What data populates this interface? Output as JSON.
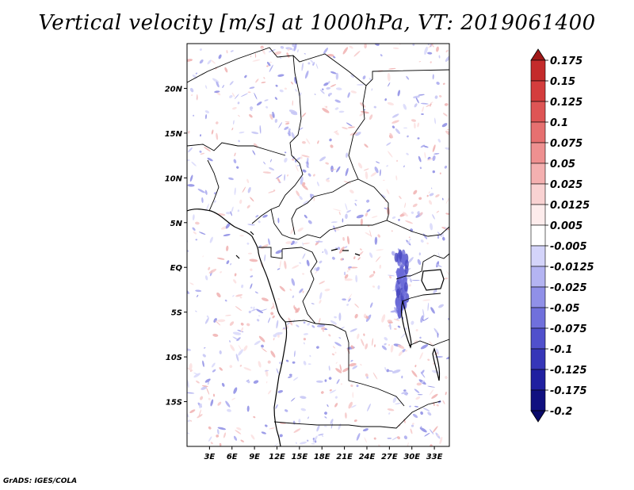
{
  "title": "Vertical velocity [m/s] at 1000hPa, VT: 2019061400",
  "credit": "GrADS: IGES/COLA",
  "map": {
    "lon_range": [
      0,
      35
    ],
    "lat_range": [
      -20,
      25
    ],
    "lon_ticks": [
      "3E",
      "6E",
      "9E",
      "12E",
      "15E",
      "18E",
      "21E",
      "24E",
      "27E",
      "30E",
      "33E"
    ],
    "lon_tick_values": [
      3,
      6,
      9,
      12,
      15,
      18,
      21,
      24,
      27,
      30,
      33
    ],
    "lat_ticks": [
      "20N",
      "15N",
      "10N",
      "5N",
      "EQ",
      "5S",
      "10S",
      "15S"
    ],
    "lat_tick_values": [
      20,
      15,
      10,
      5,
      0,
      -5,
      -10,
      -15
    ]
  },
  "colorbar": {
    "labels": [
      "0.175",
      "0.15",
      "0.125",
      "0.1",
      "0.075",
      "0.05",
      "0.025",
      "0.0125",
      "0.005",
      "-0.005",
      "-0.0125",
      "-0.025",
      "-0.05",
      "-0.075",
      "-0.1",
      "-0.125",
      "-0.175",
      "-0.2"
    ],
    "colors": [
      "#a01818",
      "#c42b2b",
      "#d43d3d",
      "#de5555",
      "#e67070",
      "#ee9090",
      "#f4b0b0",
      "#f9d2d2",
      "#fdecec",
      "#ffffff",
      "#d4d4fa",
      "#b4b4f2",
      "#9090e8",
      "#7070dc",
      "#5050cc",
      "#3636b8",
      "#2020a0",
      "#101080",
      "#0a0a6a"
    ]
  }
}
